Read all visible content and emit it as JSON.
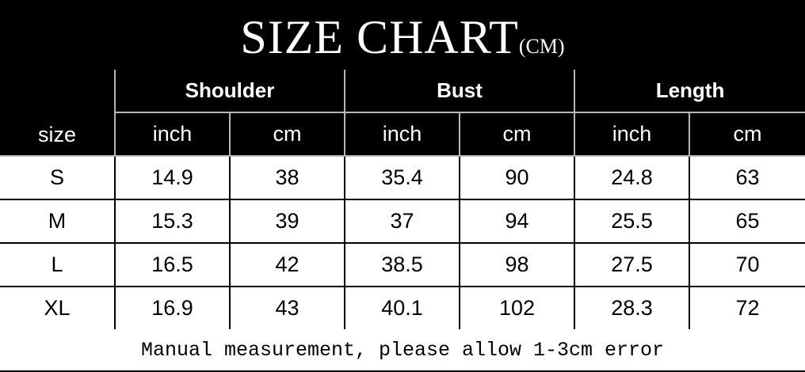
{
  "title": {
    "main": "SIZE CHART",
    "unit": "(CM)"
  },
  "chart_data": {
    "type": "table",
    "title": "SIZE CHART(CM)",
    "row_header": "size",
    "groups": [
      "Shoulder",
      "Bust",
      "Length"
    ],
    "units": [
      "inch",
      "cm",
      "inch",
      "cm",
      "inch",
      "cm"
    ],
    "rows": [
      {
        "size": "S",
        "values": [
          "14.9",
          "38",
          "35.4",
          "90",
          "24.8",
          "63"
        ]
      },
      {
        "size": "M",
        "values": [
          "15.3",
          "39",
          "37",
          "94",
          "25.5",
          "65"
        ]
      },
      {
        "size": "L",
        "values": [
          "16.5",
          "42",
          "38.5",
          "98",
          "27.5",
          "70"
        ]
      },
      {
        "size": "XL",
        "values": [
          "16.9",
          "43",
          "40.1",
          "102",
          "28.3",
          "72"
        ]
      }
    ],
    "footnote": "Manual measurement, please allow 1-3cm error"
  }
}
